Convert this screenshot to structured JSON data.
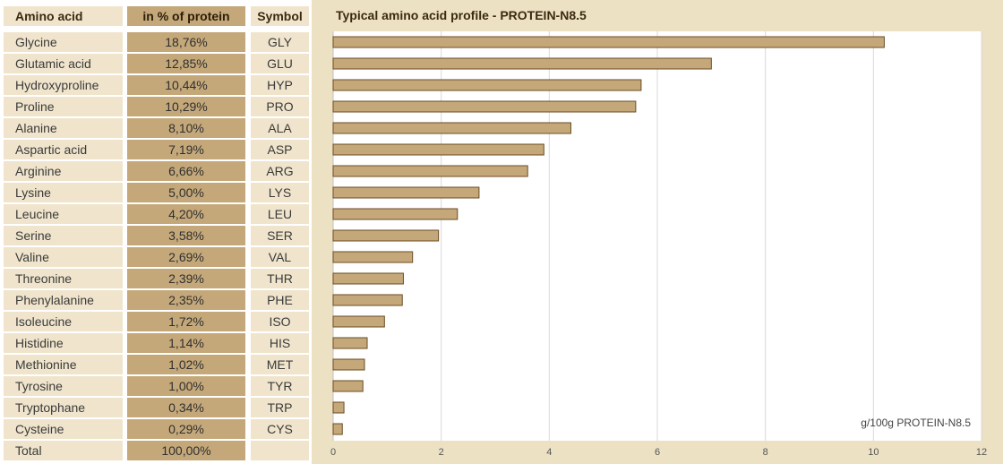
{
  "table": {
    "headers": {
      "amino_acid": "Amino acid",
      "percent": "in % of protein",
      "symbol": "Symbol"
    },
    "rows": [
      {
        "name": "Glycine",
        "percent": "18,76%",
        "symbol": "GLY"
      },
      {
        "name": "Glutamic acid",
        "percent": "12,85%",
        "symbol": "GLU"
      },
      {
        "name": "Hydroxyproline",
        "percent": "10,44%",
        "symbol": "HYP"
      },
      {
        "name": "Proline",
        "percent": "10,29%",
        "symbol": "PRO"
      },
      {
        "name": "Alanine",
        "percent": "8,10%",
        "symbol": "ALA"
      },
      {
        "name": "Aspartic acid",
        "percent": "7,19%",
        "symbol": "ASP"
      },
      {
        "name": "Arginine",
        "percent": "6,66%",
        "symbol": "ARG"
      },
      {
        "name": "Lysine",
        "percent": "5,00%",
        "symbol": "LYS"
      },
      {
        "name": "Leucine",
        "percent": "4,20%",
        "symbol": "LEU"
      },
      {
        "name": "Serine",
        "percent": "3,58%",
        "symbol": "SER"
      },
      {
        "name": "Valine",
        "percent": "2,69%",
        "symbol": "VAL"
      },
      {
        "name": "Threonine",
        "percent": "2,39%",
        "symbol": "THR"
      },
      {
        "name": "Phenylalanine",
        "percent": "2,35%",
        "symbol": "PHE"
      },
      {
        "name": "Isoleucine",
        "percent": "1,72%",
        "symbol": "ISO"
      },
      {
        "name": "Histidine",
        "percent": "1,14%",
        "symbol": "HIS"
      },
      {
        "name": "Methionine",
        "percent": "1,02%",
        "symbol": "MET"
      },
      {
        "name": "Tyrosine",
        "percent": "1,00%",
        "symbol": "TYR"
      },
      {
        "name": "Tryptophane",
        "percent": "0,34%",
        "symbol": "TRP"
      },
      {
        "name": "Cysteine",
        "percent": "0,29%",
        "symbol": "CYS"
      }
    ],
    "total": {
      "name": "Total",
      "percent": "100,00%",
      "symbol": ""
    }
  },
  "chart_data": {
    "type": "bar",
    "orientation": "horizontal",
    "title": "Typical amino acid profile  - PROTEIN-N8.5",
    "unit_label": "g/100g PROTEIN-N8.5",
    "categories": [
      "GLY",
      "GLU",
      "HYP",
      "PRO",
      "ALA",
      "ASP",
      "ARG",
      "LYS",
      "LEU",
      "SER",
      "VAL",
      "THR",
      "PHE",
      "ISO",
      "HIS",
      "MET",
      "TYR",
      "TRP",
      "CYS"
    ],
    "values": [
      10.2,
      7.0,
      5.7,
      5.6,
      4.4,
      3.9,
      3.6,
      2.7,
      2.3,
      1.95,
      1.47,
      1.3,
      1.28,
      0.95,
      0.63,
      0.58,
      0.55,
      0.2,
      0.17
    ],
    "xlim": [
      0,
      12
    ],
    "xticks": [
      "0",
      "2",
      "4",
      "6",
      "8",
      "10",
      "12"
    ],
    "grid": true,
    "colors": {
      "bar_fill": "#c4a87a",
      "bar_stroke": "#6b4c22",
      "panel_bg": "#ede1c4",
      "plot_bg": "#ffffff",
      "grid": "#d9d9d9"
    }
  }
}
